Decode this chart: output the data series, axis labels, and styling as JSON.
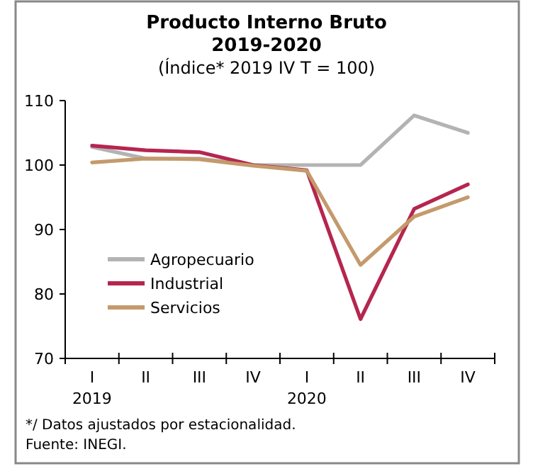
{
  "chart_data": {
    "type": "line",
    "title": "Producto Interno Bruto",
    "subtitle": "2019-2020\n(Índice* 2019 IV T = 100)",
    "categories": [
      "I\n2019",
      "II",
      "III",
      "IV",
      "I\n2020",
      "II",
      "III",
      "IV"
    ],
    "series": [
      {
        "name": "Agropecuario",
        "color": "#b3b3b3",
        "values": [
          102.8,
          101,
          101,
          100,
          100,
          100,
          107.7,
          105
        ]
      },
      {
        "name": "Industrial",
        "color": "#b5264f",
        "values": [
          103,
          102.3,
          102,
          100,
          99.2,
          76.1,
          93.2,
          97
        ]
      },
      {
        "name": "Servicios",
        "color": "#c49a6c",
        "values": [
          100.4,
          101,
          100.9,
          99.9,
          99.1,
          84.5,
          92,
          95
        ]
      }
    ],
    "ylim": [
      70,
      110
    ],
    "yticks": [
      70,
      80,
      90,
      100,
      110
    ],
    "grid": false,
    "legend": "left",
    "marker": "none",
    "line_style": "solid",
    "annotations": [
      "*/ Datos ajustados por estacionalidad.",
      "Fuente: INEGI."
    ]
  }
}
